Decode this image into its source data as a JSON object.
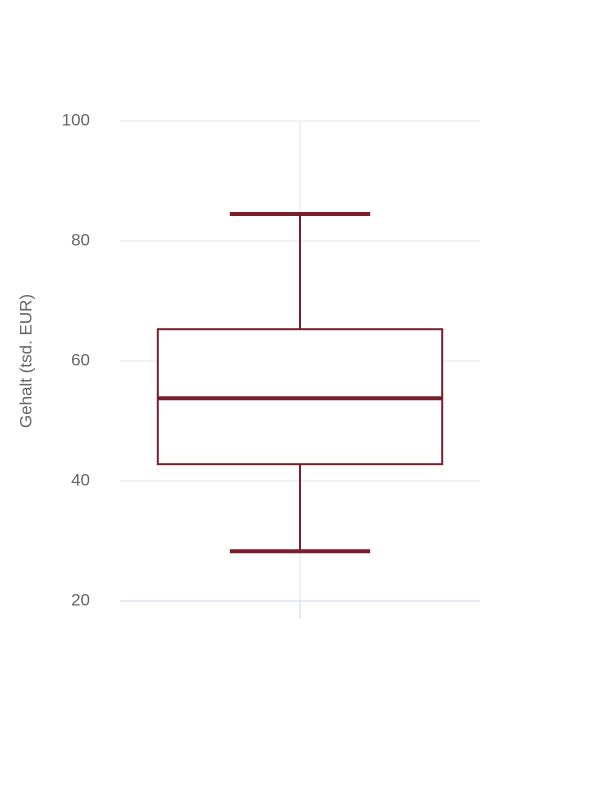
{
  "chart_data": {
    "type": "box",
    "ylabel": "Gehalt (tsd. EUR)",
    "boxes": [
      {
        "min": 28.3,
        "q1": 42.8,
        "median": 53.8,
        "q3": 65.3,
        "max": 84.5
      }
    ],
    "color": "#7b1e2b",
    "ylim": [
      20,
      100
    ],
    "yticks": [
      20,
      40,
      60,
      80,
      100
    ],
    "grid": true
  }
}
